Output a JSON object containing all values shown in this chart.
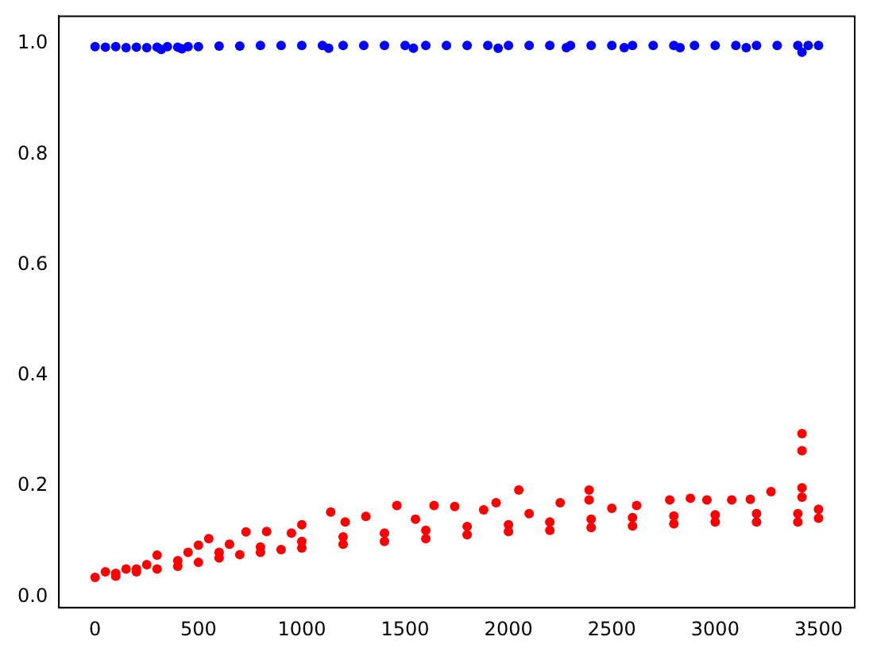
{
  "chart_data": {
    "type": "scatter",
    "xlim": [
      -175,
      3675
    ],
    "ylim": [
      -0.02,
      1.05
    ],
    "xticks": [
      0,
      500,
      1000,
      1500,
      2000,
      2500,
      3000,
      3500
    ],
    "yticks": [
      {
        "value": 0,
        "label": "0.0"
      },
      {
        "value": 0.2,
        "label": "0.2"
      },
      {
        "value": 0.4,
        "label": "0.4"
      },
      {
        "value": 0.6,
        "label": "0.6"
      },
      {
        "value": 0.8,
        "label": "0.8"
      },
      {
        "value": 1,
        "label": "1.0"
      }
    ],
    "grid": false,
    "legend": false,
    "marker": "circle",
    "series": [
      {
        "color": "#0000ff",
        "x": [
          0,
          50,
          100,
          150,
          200,
          250,
          300,
          350,
          400,
          450,
          500,
          600,
          700,
          800,
          900,
          1000,
          1100,
          1200,
          1300,
          1400,
          1500,
          1600,
          1700,
          1800,
          1900,
          2000,
          2100,
          2200,
          2300,
          2400,
          2500,
          2600,
          2700,
          2800,
          2900,
          3000,
          3100,
          3200,
          3300,
          3400,
          3420,
          3450,
          3500,
          320,
          420,
          1130,
          1540,
          1950,
          2280,
          2560,
          2830,
          3150
        ],
        "values": [
          0.995,
          0.994,
          0.995,
          0.993,
          0.994,
          0.993,
          0.994,
          0.995,
          0.994,
          0.995,
          0.995,
          0.996,
          0.996,
          0.997,
          0.997,
          0.997,
          0.997,
          0.997,
          0.997,
          0.997,
          0.997,
          0.997,
          0.997,
          0.997,
          0.997,
          0.997,
          0.997,
          0.997,
          0.997,
          0.997,
          0.997,
          0.997,
          0.997,
          0.997,
          0.997,
          0.997,
          0.997,
          0.997,
          0.997,
          0.997,
          0.985,
          0.997,
          0.997,
          0.99,
          0.991,
          0.992,
          0.992,
          0.992,
          0.993,
          0.993,
          0.993,
          0.993
        ]
      },
      {
        "color": "#ff0000",
        "x": [
          0,
          100,
          200,
          300,
          400,
          500,
          600,
          700,
          800,
          900,
          1000,
          1200,
          1400,
          1600,
          1800,
          2000,
          2200,
          2400,
          2600,
          2800,
          3000,
          3200,
          3400,
          3500,
          50,
          150,
          250,
          300,
          450,
          500,
          550,
          650,
          730,
          830,
          950,
          1000,
          1140,
          1210,
          1310,
          1460,
          1550,
          1640,
          1740,
          1880,
          1940,
          2050,
          2100,
          2250,
          2390,
          2390,
          2500,
          2620,
          2780,
          2880,
          2960,
          3080,
          3170,
          3270,
          3420,
          3420,
          3420,
          3420,
          3500,
          100,
          200,
          400,
          600,
          800,
          1000,
          1200,
          1400,
          1600,
          1800,
          2000,
          2200,
          2400,
          2600,
          2800,
          3000,
          3200,
          3400
        ],
        "values": [
          0.035,
          0.037,
          0.045,
          0.05,
          0.055,
          0.062,
          0.07,
          0.076,
          0.08,
          0.085,
          0.088,
          0.095,
          0.1,
          0.105,
          0.112,
          0.118,
          0.12,
          0.125,
          0.128,
          0.132,
          0.135,
          0.135,
          0.135,
          0.142,
          0.045,
          0.05,
          0.058,
          0.075,
          0.08,
          0.093,
          0.105,
          0.095,
          0.117,
          0.118,
          0.115,
          0.13,
          0.153,
          0.135,
          0.145,
          0.165,
          0.14,
          0.165,
          0.163,
          0.157,
          0.17,
          0.193,
          0.15,
          0.17,
          0.193,
          0.175,
          0.16,
          0.165,
          0.175,
          0.178,
          0.175,
          0.175,
          0.176,
          0.19,
          0.295,
          0.264,
          0.197,
          0.18,
          0.158,
          0.042,
          0.05,
          0.065,
          0.08,
          0.09,
          0.1,
          0.108,
          0.115,
          0.12,
          0.127,
          0.13,
          0.135,
          0.14,
          0.143,
          0.146,
          0.148,
          0.15,
          0.15
        ]
      }
    ]
  }
}
